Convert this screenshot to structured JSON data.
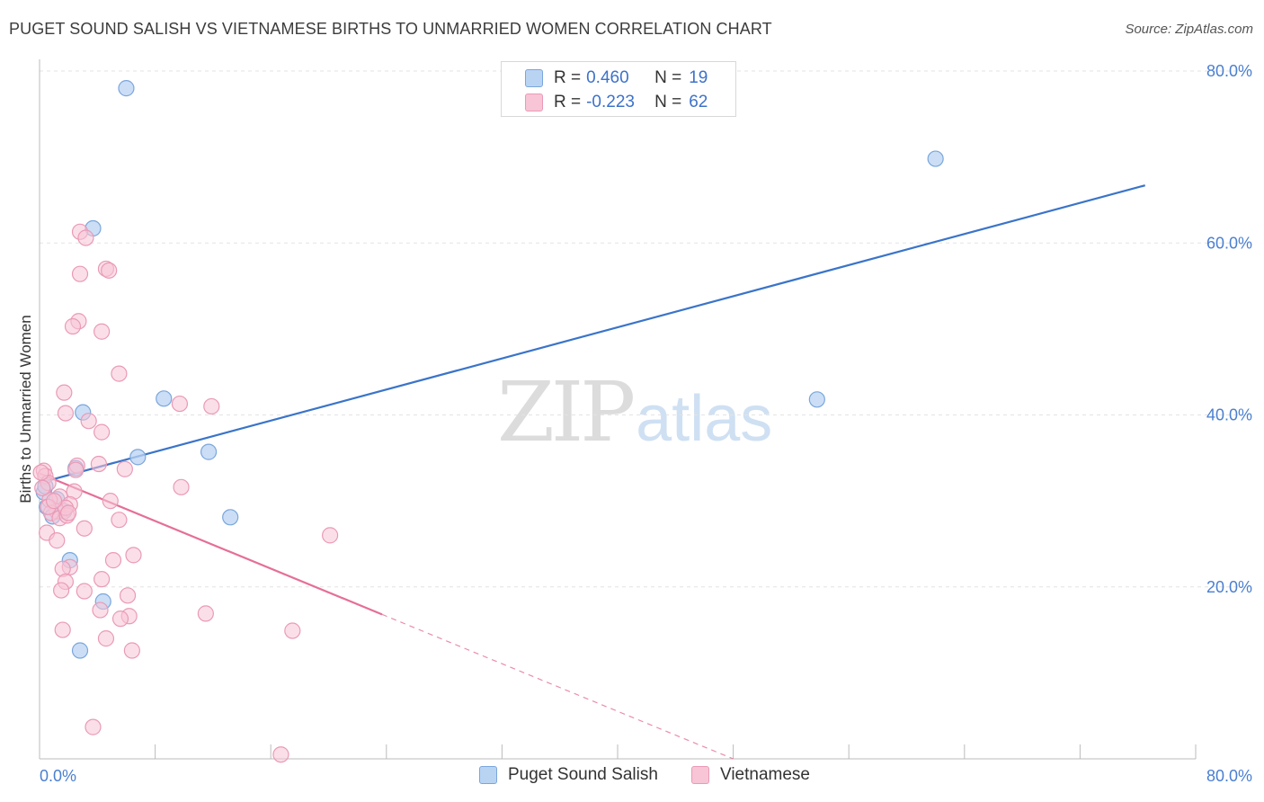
{
  "title": "PUGET SOUND SALISH VS VIETNAMESE BIRTHS TO UNMARRIED WOMEN CORRELATION CHART",
  "source": "Source: ZipAtlas.com",
  "watermark": {
    "zip": "ZIP",
    "atlas": "atlas"
  },
  "legend_top": {
    "rows": [
      {
        "r_label": "R = ",
        "r_value": "0.460",
        "n_label": "N = ",
        "n_value": "19"
      },
      {
        "r_label": "R = ",
        "r_value": "-0.223",
        "n_label": "N = ",
        "n_value": "62"
      }
    ]
  },
  "legend_bottom": [
    "Puget Sound Salish",
    "Vietnamese"
  ],
  "colors": {
    "blue_fill": "#b9d3f3",
    "blue_stroke": "#7aa6dc",
    "blue_line": "#3a74c9",
    "pink_fill": "#f7c5d5",
    "pink_stroke": "#ea9ab6",
    "pink_line": "#e56f98",
    "tick_text": "#4a7fd1",
    "grid": "#e3e3e3"
  },
  "chart_data": {
    "type": "scatter",
    "title": "PUGET SOUND SALISH VS VIETNAMESE BIRTHS TO UNMARRIED WOMEN CORRELATION CHART",
    "xlabel": "",
    "ylabel": "Births to Unmarried Women",
    "xlim": [
      0,
      80
    ],
    "ylim": [
      0,
      80
    ],
    "x_tick_labels": [
      "0.0%",
      "80.0%"
    ],
    "y_tick_values": [
      20,
      40,
      60,
      80
    ],
    "y_tick_labels": [
      "20.0%",
      "40.0%",
      "60.0%",
      "80.0%"
    ],
    "grid": true,
    "legend": "bottom",
    "series": [
      {
        "name": "Puget Sound Salish",
        "r": 0.46,
        "n": 19,
        "points": [
          [
            6.0,
            78.0
          ],
          [
            3.7,
            61.7
          ],
          [
            62.0,
            69.8
          ],
          [
            53.8,
            41.8
          ],
          [
            8.6,
            41.9
          ],
          [
            3.0,
            40.3
          ],
          [
            11.7,
            35.7
          ],
          [
            6.8,
            35.1
          ],
          [
            2.5,
            33.8
          ],
          [
            0.3,
            31.0
          ],
          [
            1.2,
            30.2
          ],
          [
            0.5,
            29.3
          ],
          [
            1.7,
            28.8
          ],
          [
            0.9,
            28.2
          ],
          [
            13.2,
            28.1
          ],
          [
            2.1,
            23.1
          ],
          [
            4.4,
            18.3
          ],
          [
            2.8,
            12.6
          ],
          [
            0.4,
            31.7
          ]
        ],
        "trend": {
          "x0": 0,
          "y0": 32.1,
          "x1": 76.5,
          "y1": 66.7
        }
      },
      {
        "name": "Vietnamese",
        "r": -0.223,
        "n": 62,
        "points": [
          [
            2.8,
            61.3
          ],
          [
            3.2,
            60.6
          ],
          [
            4.6,
            57.0
          ],
          [
            4.8,
            56.8
          ],
          [
            2.8,
            56.4
          ],
          [
            2.7,
            50.9
          ],
          [
            2.3,
            50.3
          ],
          [
            4.3,
            49.7
          ],
          [
            5.5,
            44.8
          ],
          [
            1.7,
            42.6
          ],
          [
            9.7,
            41.3
          ],
          [
            11.9,
            41.0
          ],
          [
            1.8,
            40.2
          ],
          [
            3.4,
            39.3
          ],
          [
            4.3,
            38.0
          ],
          [
            2.6,
            34.1
          ],
          [
            2.5,
            33.6
          ],
          [
            4.1,
            34.3
          ],
          [
            5.9,
            33.7
          ],
          [
            0.3,
            33.5
          ],
          [
            0.4,
            32.9
          ],
          [
            0.6,
            32.1
          ],
          [
            9.8,
            31.6
          ],
          [
            2.4,
            31.1
          ],
          [
            1.4,
            30.5
          ],
          [
            0.7,
            30.1
          ],
          [
            4.9,
            30.0
          ],
          [
            2.1,
            29.6
          ],
          [
            1.2,
            28.8
          ],
          [
            0.8,
            28.6
          ],
          [
            1.4,
            28.0
          ],
          [
            1.9,
            28.3
          ],
          [
            1.8,
            29.2
          ],
          [
            0.6,
            29.3
          ],
          [
            5.5,
            27.8
          ],
          [
            3.1,
            26.8
          ],
          [
            0.5,
            26.3
          ],
          [
            1.2,
            25.4
          ],
          [
            20.1,
            26.0
          ],
          [
            6.5,
            23.7
          ],
          [
            5.1,
            23.1
          ],
          [
            2.1,
            22.3
          ],
          [
            1.6,
            22.1
          ],
          [
            1.8,
            20.6
          ],
          [
            4.3,
            20.9
          ],
          [
            1.5,
            19.6
          ],
          [
            3.1,
            19.5
          ],
          [
            6.1,
            19.0
          ],
          [
            4.2,
            17.3
          ],
          [
            11.5,
            16.9
          ],
          [
            6.2,
            16.6
          ],
          [
            5.6,
            16.3
          ],
          [
            1.6,
            15.0
          ],
          [
            17.5,
            14.9
          ],
          [
            4.6,
            14.0
          ],
          [
            6.4,
            12.6
          ],
          [
            3.7,
            3.7
          ],
          [
            16.7,
            0.5
          ],
          [
            0.1,
            33.3
          ],
          [
            0.2,
            31.5
          ],
          [
            1.0,
            30.0
          ],
          [
            2.0,
            28.6
          ]
        ],
        "trend": {
          "x0": 0,
          "y0": 33.2,
          "x1": 23.7,
          "y1": 16.8
        },
        "trend_dashed_to": {
          "x1": 48,
          "y1": 0
        }
      }
    ]
  }
}
